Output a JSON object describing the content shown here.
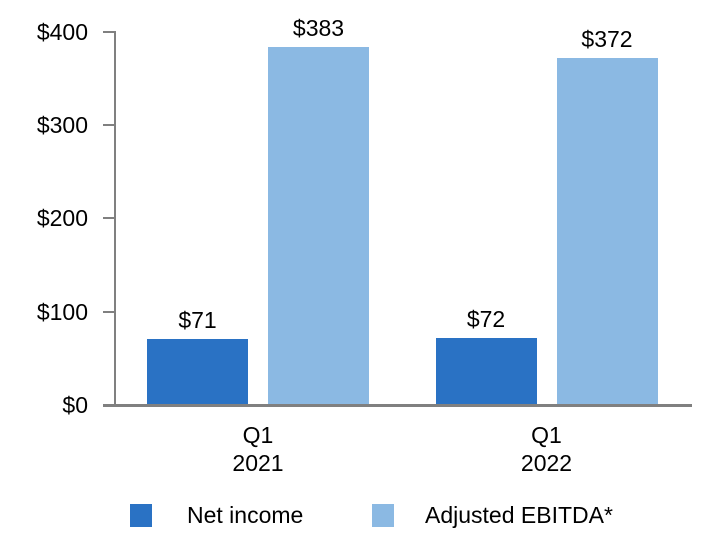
{
  "chart_data": {
    "type": "bar",
    "title": "",
    "categories": [
      [
        "Q1",
        "2021"
      ],
      [
        "Q1",
        "2022"
      ]
    ],
    "series": [
      {
        "name": "Net income",
        "color": "#2A72C4",
        "values": [
          71,
          72
        ],
        "value_labels": [
          "$71",
          "$72"
        ]
      },
      {
        "name": "Adjusted EBITDA*",
        "color": "#8BB9E3",
        "values": [
          383,
          372
        ],
        "value_labels": [
          "$383",
          "$372"
        ]
      }
    ],
    "ylim": [
      0,
      400
    ],
    "yticks": [
      0,
      100,
      200,
      300,
      400
    ],
    "ytick_labels": [
      "$0",
      "$100",
      "$200",
      "$300",
      "$400"
    ],
    "grid": false,
    "legend_position": "bottom",
    "axis_color": "#808080",
    "text_color": "#000000",
    "background": "#FFFFFF",
    "value_prefix": "$"
  }
}
